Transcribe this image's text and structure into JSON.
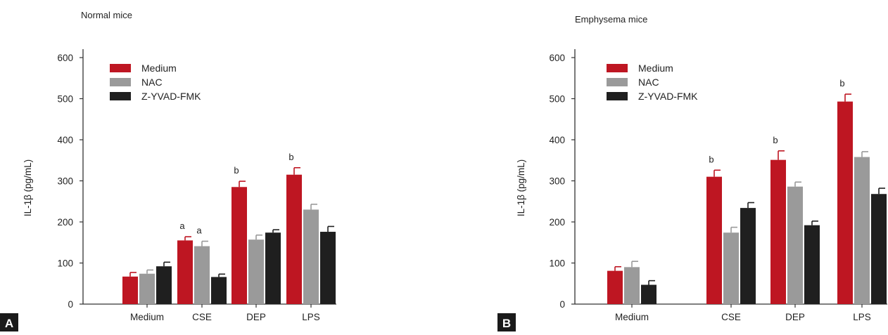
{
  "colors": {
    "medium": "#be1622",
    "nac": "#9a9a9a",
    "zyvad": "#1f1f1f",
    "axis": "#333333",
    "label_box": "#1a1a1a"
  },
  "chart_data": [
    {
      "type": "bar",
      "panel_label": "A",
      "title": "Normal mice",
      "ylabel": "IL-1β (pg/mL)",
      "ylim": [
        0,
        600
      ],
      "yticks": [
        0,
        100,
        200,
        300,
        400,
        500,
        600
      ],
      "categories": [
        "Medium",
        "CSE",
        "DEP",
        "LPS"
      ],
      "legend_position": "top-left",
      "series": [
        {
          "name": "Medium",
          "color": "#be1622",
          "values": [
            67,
            155,
            285,
            315
          ],
          "errors": [
            10,
            9,
            14,
            17
          ],
          "labels": [
            "",
            "a",
            "b",
            "b"
          ]
        },
        {
          "name": "NAC",
          "color": "#9a9a9a",
          "values": [
            74,
            141,
            157,
            230
          ],
          "errors": [
            9,
            12,
            11,
            13
          ],
          "labels": [
            "",
            "a",
            "",
            ""
          ]
        },
        {
          "name": "Z-YVAD-FMK",
          "color": "#1f1f1f",
          "values": [
            92,
            66,
            174,
            176
          ],
          "errors": [
            10,
            7,
            7,
            13
          ],
          "labels": [
            "",
            "",
            "",
            ""
          ]
        }
      ]
    },
    {
      "type": "bar",
      "panel_label": "B",
      "title": "Emphysema mice",
      "ylabel": "IL-1β (pg/mL)",
      "ylim": [
        0,
        600
      ],
      "yticks": [
        0,
        100,
        200,
        300,
        400,
        500,
        600
      ],
      "categories": [
        "Medium",
        "CSE",
        "DEP",
        "LPS"
      ],
      "legend_position": "top-left",
      "series": [
        {
          "name": "Medium",
          "color": "#be1622",
          "values": [
            81,
            310,
            351,
            493
          ],
          "errors": [
            10,
            16,
            22,
            18
          ],
          "labels": [
            "",
            "b",
            "b",
            "b"
          ]
        },
        {
          "name": "NAC",
          "color": "#9a9a9a",
          "values": [
            90,
            174,
            286,
            358
          ],
          "errors": [
            14,
            13,
            11,
            13
          ],
          "labels": [
            "",
            "",
            "",
            ""
          ]
        },
        {
          "name": "Z-YVAD-FMK",
          "color": "#1f1f1f",
          "values": [
            47,
            234,
            192,
            268
          ],
          "errors": [
            10,
            13,
            10,
            14
          ],
          "labels": [
            "",
            "",
            "",
            ""
          ]
        }
      ]
    }
  ]
}
